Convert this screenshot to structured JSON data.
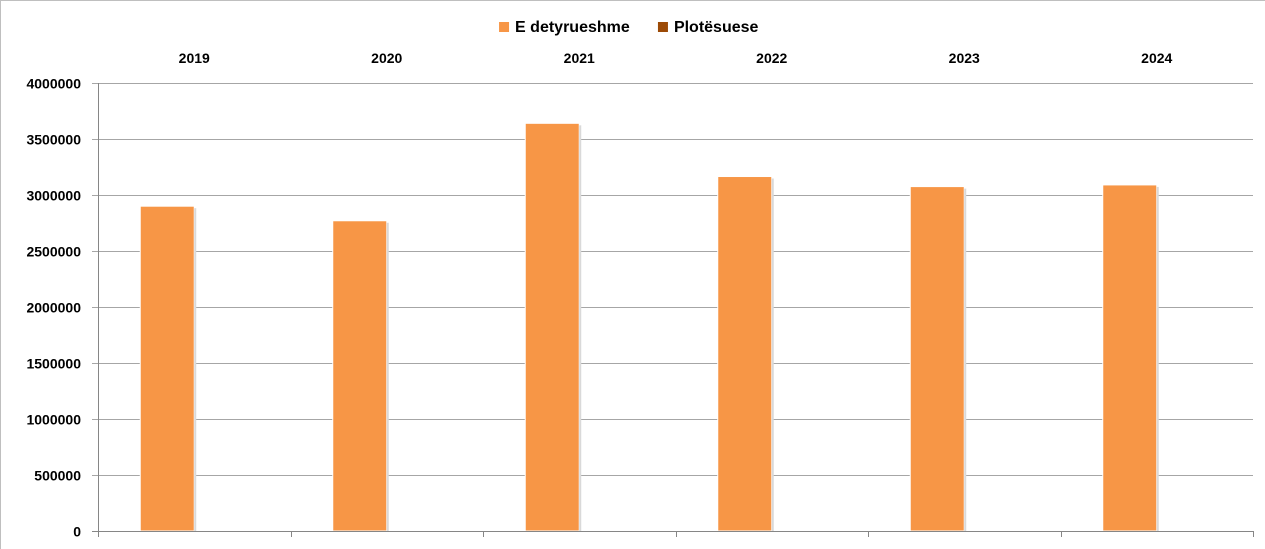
{
  "chart_data": {
    "type": "bar",
    "categories": [
      "2019",
      "2020",
      "2021",
      "2022",
      "2023",
      "2024"
    ],
    "series": [
      {
        "name": "E detyrueshme",
        "color": "#f79646",
        "values": [
          2900000,
          2770000,
          3640000,
          3165000,
          3075000,
          3090000
        ]
      },
      {
        "name": "Plotësuese",
        "color": "#9c4a06",
        "values": [
          0,
          0,
          0,
          0,
          0,
          0
        ]
      }
    ],
    "title": "",
    "xlabel": "",
    "ylabel": "",
    "ylim": [
      0,
      4000000
    ],
    "yticks": [
      "0",
      "500000",
      "1000000",
      "1500000",
      "2000000",
      "2500000",
      "3000000",
      "3500000",
      "4000000"
    ],
    "grid": true,
    "x_tick_position": "top",
    "legend_position": "top"
  }
}
